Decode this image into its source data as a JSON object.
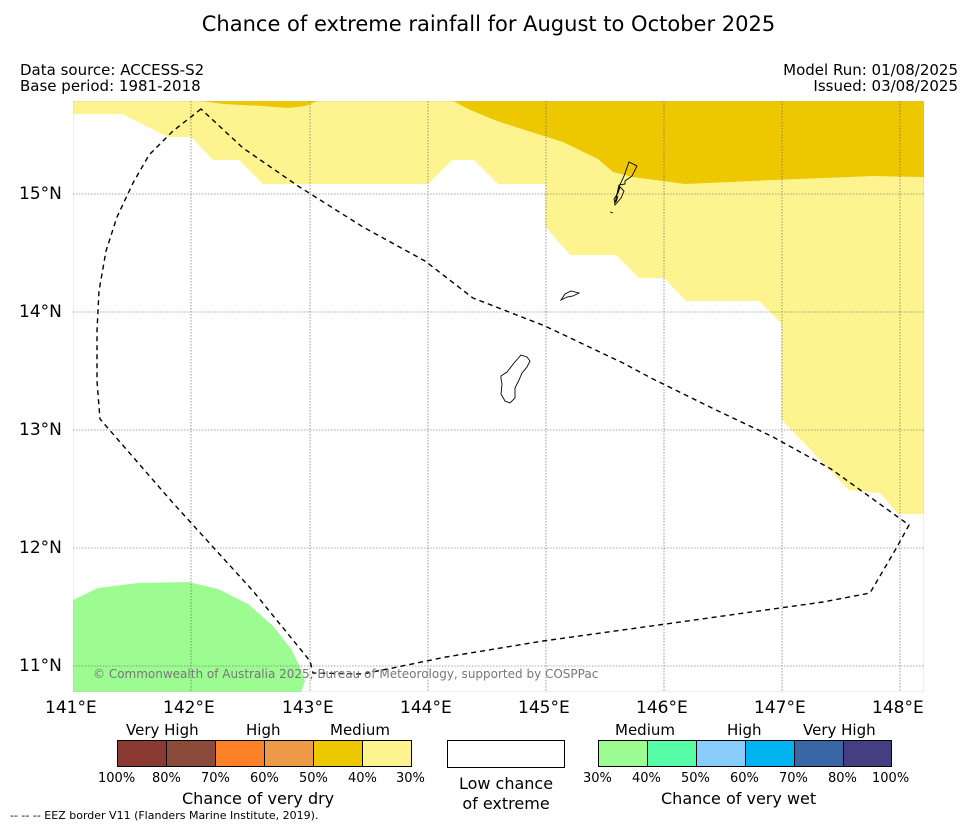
{
  "title": "Chance of extreme rainfall for August to October 2025",
  "meta": {
    "data_source": "Data source: ACCESS-S2",
    "base_period": "Base period: 1981-2018",
    "model_run": "Model Run: 01/08/2025",
    "issued": "Issued: 03/08/2025"
  },
  "map": {
    "copyright": "© Commonwealth of Australia 2025, Bureau of Meteorology, supported by COSPPac",
    "lon_labels": [
      "141°E",
      "142°E",
      "143°E",
      "144°E",
      "145°E",
      "146°E",
      "147°E",
      "148°E"
    ],
    "lat_labels": [
      "15°N",
      "14°N",
      "13°N",
      "12°N",
      "11°N"
    ],
    "lon_range": [
      141,
      148.2
    ],
    "lat_range": [
      10.8,
      15.8
    ],
    "grid": true,
    "colors": {
      "medium_dry": "#fdf48f",
      "high_dry_medium": "#edc800",
      "medium_wet": "#9cfc92",
      "eez_line": "#000000"
    }
  },
  "legend": {
    "dry": {
      "categories": [
        "Very High",
        "High",
        "Medium"
      ],
      "percents": [
        "100%",
        "80%",
        "70%",
        "60%",
        "50%",
        "40%",
        "30%"
      ],
      "colors": [
        "#8b3a33",
        "#8b4a3a",
        "#fc8126",
        "#ec9a47",
        "#edc800",
        "#fdf48f"
      ],
      "title": "Chance of very dry"
    },
    "low": {
      "line1": "Low chance",
      "line2": "of extreme"
    },
    "wet": {
      "categories": [
        "Medium",
        "High",
        "Very High"
      ],
      "percents": [
        "30%",
        "40%",
        "50%",
        "60%",
        "70%",
        "80%",
        "100%"
      ],
      "colors": [
        "#9cfc92",
        "#56fda6",
        "#88ccfb",
        "#01b3ee",
        "#3966a4",
        "#453e82"
      ],
      "title": "Chance of very wet"
    }
  },
  "footnote": "--  --  -- EEZ border V11 (Flanders Marine Institute, 2019)."
}
